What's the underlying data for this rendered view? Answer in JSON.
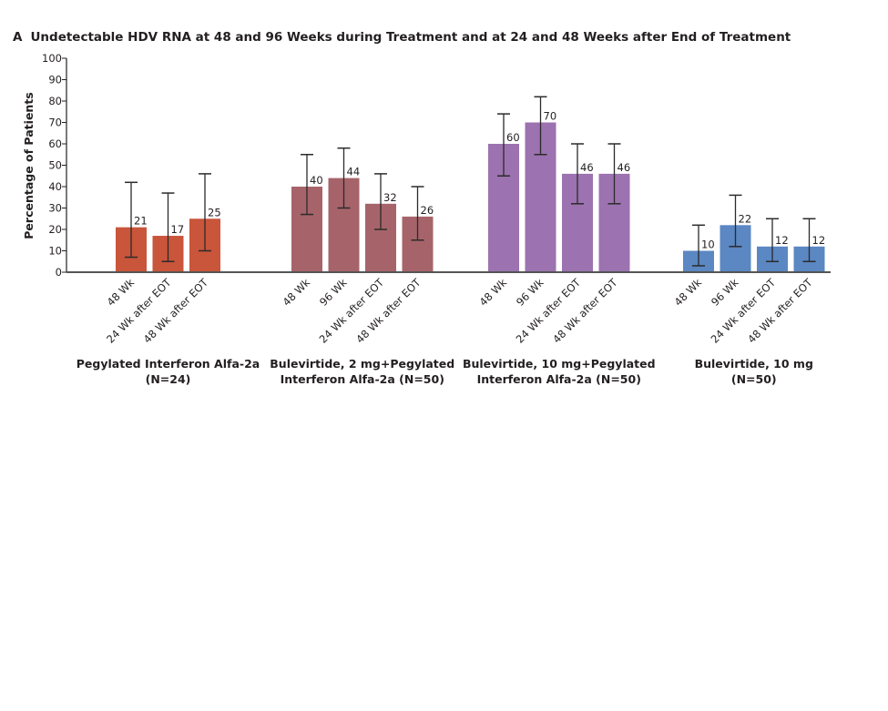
{
  "panel_letter": "A",
  "title": "Undetectable HDV RNA at 48 and 96 Weeks during Treatment and at 24 and 48 Weeks after End of Treatment",
  "chart_data": {
    "type": "bar",
    "title": "Undetectable HDV RNA at 48 and 96 Weeks during Treatment and at 24 and 48 Weeks after End of Treatment",
    "xlabel": "",
    "ylabel": "Percentage of Patients",
    "ylim": [
      0,
      100
    ],
    "yticks": [
      0,
      10,
      20,
      30,
      40,
      50,
      60,
      70,
      80,
      90,
      100
    ],
    "grid": false,
    "legend": "none",
    "groups": [
      {
        "name": "Pegylated Interferon Alfa-2a",
        "n_label": "(N=24)",
        "label_lines": [
          "Pegylated Interferon Alfa-2a",
          "(N=24)"
        ],
        "color": "#c9553b",
        "categories": [
          "48 Wk",
          "24 Wk after EOT",
          "48 Wk after EOT"
        ],
        "values": [
          21,
          17,
          25
        ],
        "ci_low": [
          7,
          5,
          10
        ],
        "ci_high": [
          42,
          37,
          46
        ]
      },
      {
        "name": "Bulevirtide, 2 mg+Pegylated Interferon Alfa-2a",
        "n_label": "(N=50)",
        "label_lines": [
          "Bulevirtide, 2 mg+Pegylated",
          "Interferon Alfa-2a (N=50)"
        ],
        "color": "#a6646a",
        "categories": [
          "48 Wk",
          "96 Wk",
          "24 Wk after EOT",
          "48 Wk after EOT"
        ],
        "values": [
          40,
          44,
          32,
          26
        ],
        "ci_low": [
          27,
          30,
          20,
          15
        ],
        "ci_high": [
          55,
          58,
          46,
          40
        ]
      },
      {
        "name": "Bulevirtide, 10 mg+Pegylated Interferon Alfa-2a",
        "n_label": "(N=50)",
        "label_lines": [
          "Bulevirtide, 10 mg+Pegylated",
          "Interferon Alfa-2a (N=50)"
        ],
        "color": "#9c72b0",
        "categories": [
          "48 Wk",
          "96 Wk",
          "24 Wk after EOT",
          "48 Wk after EOT"
        ],
        "values": [
          60,
          70,
          46,
          46
        ],
        "ci_low": [
          45,
          55,
          32,
          32
        ],
        "ci_high": [
          74,
          82,
          60,
          60
        ]
      },
      {
        "name": "Bulevirtide, 10 mg",
        "n_label": "(N=50)",
        "label_lines": [
          "Bulevirtide, 10 mg",
          "(N=50)"
        ],
        "color": "#5b87c2",
        "categories": [
          "48 Wk",
          "96 Wk",
          "24 Wk after EOT",
          "48 Wk after EOT"
        ],
        "values": [
          10,
          22,
          12,
          12
        ],
        "ci_low": [
          3,
          12,
          5,
          5
        ],
        "ci_high": [
          22,
          36,
          25,
          25
        ]
      }
    ]
  }
}
